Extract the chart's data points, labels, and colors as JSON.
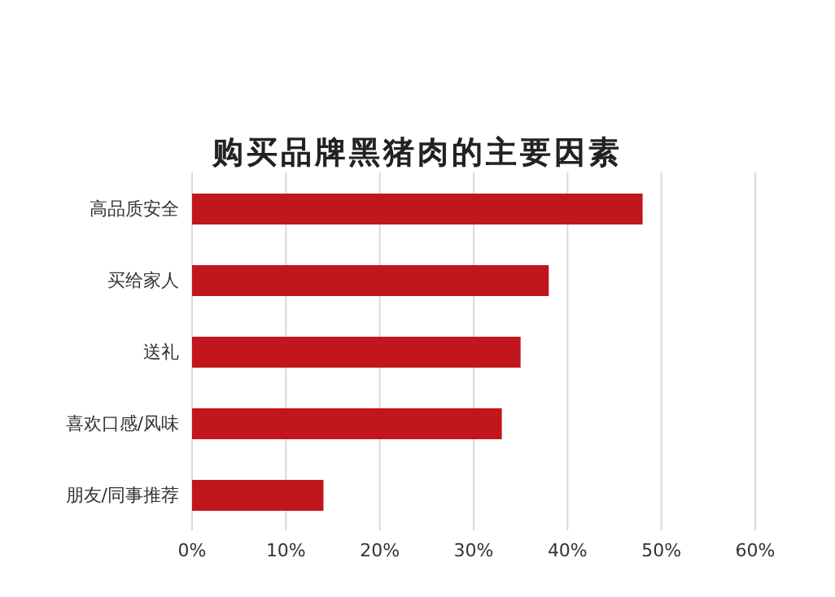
{
  "chart_data": {
    "type": "bar",
    "orientation": "horizontal",
    "title": "购买品牌黑猪肉的主要因素",
    "categories": [
      "高品质安全",
      "买给家人",
      "送礼",
      "喜欢口感/风味",
      "朋友/同事推荐"
    ],
    "values": [
      48,
      38,
      35,
      33,
      14
    ],
    "color": "#c0161c",
    "xlim": [
      0,
      60
    ],
    "xticks": [
      {
        "value": 0,
        "label": "0%"
      },
      {
        "value": 10,
        "label": "10%"
      },
      {
        "value": 20,
        "label": "20%"
      },
      {
        "value": 30,
        "label": "30%"
      },
      {
        "value": 40,
        "label": "40%"
      },
      {
        "value": 50,
        "label": "50%"
      },
      {
        "value": 60,
        "label": "60%"
      }
    ],
    "grid": "x",
    "legend": false
  }
}
